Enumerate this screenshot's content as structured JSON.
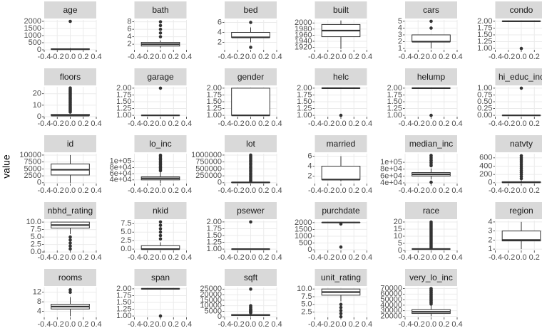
{
  "chart_data": {
    "type": "boxplot",
    "y_label": "value",
    "xlim": [
      -0.4,
      0.4
    ],
    "xticks": [
      -0.4,
      -0.2,
      {
        "value": 0,
        "label": "0.0"
      },
      0.2,
      0.4
    ],
    "panels": [
      {
        "title": "age",
        "ylim": [
          0,
          2100
        ],
        "yticks": [
          0,
          500,
          1000,
          1500,
          2000
        ],
        "whisker_low": 0,
        "q1": 30,
        "median": 45,
        "q3": 70,
        "whisker_high": 120,
        "outliers": [
          2000
        ]
      },
      {
        "title": "bath",
        "ylim": [
          0.5,
          8.5
        ],
        "yticks": [
          2,
          4,
          6,
          8
        ],
        "whisker_low": 1,
        "q1": 1.5,
        "median": 2,
        "q3": 2.5,
        "whisker_high": 3,
        "outliers": [
          4,
          5,
          6,
          7,
          8
        ]
      },
      {
        "title": "bed",
        "ylim": [
          0.5,
          6.5
        ],
        "yticks": [
          2,
          4,
          6
        ],
        "whisker_low": 2,
        "q1": 3,
        "median": 3,
        "q3": 4,
        "whisker_high": 5,
        "outliers": [
          1,
          6
        ]
      },
      {
        "title": "built",
        "ylim": [
          1912,
          2010
        ],
        "yticks": [
          1920,
          1940,
          1960,
          1980,
          2000
        ],
        "whisker_low": 1915,
        "q1": 1955,
        "median": 1975,
        "q3": 1995,
        "whisker_high": 2008,
        "outliers": []
      },
      {
        "title": "cars",
        "ylim": [
          0.8,
          5.2
        ],
        "yticks": [
          1,
          2,
          3,
          4,
          5
        ],
        "whisker_low": 1,
        "q1": 2,
        "median": 2,
        "q3": 3,
        "whisker_high": 3,
        "outliers": [
          4,
          5
        ]
      },
      {
        "title": "condo",
        "ylim": [
          0.95,
          2.05
        ],
        "yticks": [
          {
            "value": 1,
            "label": "1.00"
          },
          1.25,
          {
            "value": 1.5,
            "label": "1.50"
          },
          1.75,
          {
            "value": 2,
            "label": "2.00"
          }
        ],
        "whisker_low": 2,
        "q1": 2,
        "median": 2,
        "q3": 2,
        "whisker_high": 2,
        "outliers": [
          1
        ]
      },
      {
        "title": "floors",
        "ylim": [
          0,
          26
        ],
        "yticks": [
          0,
          10,
          20
        ],
        "whisker_low": 1,
        "q1": 1,
        "median": 1,
        "q3": 2,
        "whisker_high": 2,
        "outliers": [
          4,
          5,
          6,
          7,
          8,
          9,
          10,
          11,
          12,
          13,
          14,
          15,
          16,
          17,
          18,
          19,
          20,
          21,
          22,
          23,
          24,
          25
        ]
      },
      {
        "title": "garage",
        "ylim": [
          0.95,
          2.05
        ],
        "yticks": [
          {
            "value": 1,
            "label": "1.00"
          },
          1.25,
          {
            "value": 1.5,
            "label": "1.50"
          },
          1.75,
          {
            "value": 2,
            "label": "2.00"
          }
        ],
        "whisker_low": 1,
        "q1": 1,
        "median": 1,
        "q3": 1,
        "whisker_high": 1,
        "outliers": [
          2
        ]
      },
      {
        "title": "gender",
        "ylim": [
          0.95,
          2.05
        ],
        "yticks": [
          {
            "value": 1,
            "label": "1.00"
          },
          1.25,
          {
            "value": 1.5,
            "label": "1.50"
          },
          1.75,
          {
            "value": 2,
            "label": "2.00"
          }
        ],
        "whisker_low": 1,
        "q1": 1,
        "median": 1,
        "q3": 2,
        "whisker_high": 2,
        "outliers": []
      },
      {
        "title": "helc",
        "ylim": [
          0.95,
          2.05
        ],
        "yticks": [
          {
            "value": 1,
            "label": "1.00"
          },
          1.25,
          {
            "value": 1.5,
            "label": "1.50"
          },
          1.75,
          {
            "value": 2,
            "label": "2.00"
          }
        ],
        "whisker_low": 2,
        "q1": 2,
        "median": 2,
        "q3": 2,
        "whisker_high": 2,
        "outliers": [
          1
        ]
      },
      {
        "title": "helump",
        "ylim": [
          0.95,
          2.05
        ],
        "yticks": [
          {
            "value": 1,
            "label": "1.00"
          },
          1.25,
          {
            "value": 1.5,
            "label": "1.50"
          },
          1.75,
          {
            "value": 2,
            "label": "2.00"
          }
        ],
        "whisker_low": 2,
        "q1": 2,
        "median": 2,
        "q3": 2,
        "whisker_high": 2,
        "outliers": [
          1
        ]
      },
      {
        "title": "hi_educ_inc",
        "ylim": [
          -0.05,
          1.05
        ],
        "yticks": [
          {
            "value": 0,
            "label": "0.00"
          },
          0.25,
          {
            "value": 0.5,
            "label": "0.50"
          },
          0.75,
          {
            "value": 1,
            "label": "1.00"
          }
        ],
        "whisker_low": 0,
        "q1": 0,
        "median": 0,
        "q3": 0,
        "whisker_high": 0,
        "outliers": [
          1
        ]
      },
      {
        "title": "id",
        "ylim": [
          -300,
          10500
        ],
        "yticks": [
          0,
          2500,
          5000,
          7500,
          10000
        ],
        "whisker_low": 0,
        "q1": 2800,
        "median": 4700,
        "q3": 6800,
        "whisker_high": 10000,
        "outliers": []
      },
      {
        "title": "lo_inc",
        "ylim": [
          28000,
          125000
        ],
        "yticks": [
          {
            "value": 40000,
            "label": "4e+04"
          },
          {
            "value": 60000,
            "label": "6e+04"
          },
          {
            "value": 80000,
            "label": "8e+04"
          },
          {
            "value": 100000,
            "label": "1e+05"
          }
        ],
        "whisker_low": 30000,
        "q1": 40000,
        "median": 45000,
        "q3": 50000,
        "whisker_high": 65000,
        "outliers": [
          70000,
          75000,
          80000,
          85000,
          90000,
          95000,
          100000,
          105000,
          110000,
          115000,
          120000
        ]
      },
      {
        "title": "lot",
        "ylim": [
          -30000,
          1050000
        ],
        "yticks": [
          0,
          250000,
          500000,
          750000,
          1000000
        ],
        "whisker_low": 0,
        "q1": 8000,
        "median": 12000,
        "q3": 18000,
        "whisker_high": 40000,
        "outliers": [
          60000,
          100000,
          150000,
          200000,
          250000,
          300000,
          350000,
          400000,
          450000,
          500000,
          550000,
          600000,
          650000,
          700000,
          750000,
          800000,
          850000,
          900000,
          950000,
          1000000
        ]
      },
      {
        "title": "married",
        "ylim": [
          0.5,
          6.5
        ],
        "yticks": [
          2,
          4,
          6
        ],
        "whisker_low": 1,
        "q1": 1.3,
        "median": 1.3,
        "q3": 4,
        "whisker_high": 6,
        "outliers": []
      },
      {
        "title": "median_inc",
        "ylim": [
          38000,
          125000
        ],
        "yticks": [
          {
            "value": 40000,
            "label": "4e+04"
          },
          {
            "value": 60000,
            "label": "6e+04"
          },
          {
            "value": 80000,
            "label": "8e+04"
          },
          {
            "value": 100000,
            "label": "1e+05"
          }
        ],
        "whisker_low": 50000,
        "q1": 60000,
        "median": 65000,
        "q3": 70000,
        "whisker_high": 82000,
        "outliers": [
          42000,
          90000,
          95000,
          100000,
          105000,
          110000,
          115000,
          120000
        ]
      },
      {
        "title": "natvty",
        "ylim": [
          -20,
          700
        ],
        "yticks": [
          0,
          200,
          400,
          600
        ],
        "whisker_low": 0,
        "q1": 5,
        "median": 10,
        "q3": 25,
        "whisker_high": 60,
        "outliers": [
          100,
          150,
          200,
          250,
          300,
          350,
          400,
          450,
          500,
          550,
          600,
          650
        ]
      },
      {
        "title": "nbhd_rating",
        "ylim": [
          0.5,
          10.5
        ],
        "yticks": [
          {
            "value": 0,
            "label": "0.0"
          },
          2.5,
          {
            "value": 5,
            "label": "5.0"
          },
          7.5,
          {
            "value": 10,
            "label": "10.0"
          }
        ],
        "whisker_low": 6,
        "q1": 8,
        "median": 9,
        "q3": 10,
        "whisker_high": 10,
        "outliers": [
          1,
          2,
          3,
          4,
          5
        ]
      },
      {
        "title": "nkid",
        "ylim": [
          -0.4,
          8.4
        ],
        "yticks": [
          {
            "value": 0,
            "label": "0.0"
          },
          2.5,
          {
            "value": 5,
            "label": "5.0"
          },
          7.5
        ],
        "whisker_low": 0,
        "q1": 0,
        "median": 0,
        "q3": 1,
        "whisker_high": 2,
        "outliers": [
          3,
          4,
          5,
          6,
          7,
          8
        ]
      },
      {
        "title": "psewer",
        "ylim": [
          0.95,
          2.05
        ],
        "yticks": [
          {
            "value": 1,
            "label": "1.00"
          },
          1.25,
          {
            "value": 1.5,
            "label": "1.50"
          },
          1.75,
          {
            "value": 2,
            "label": "2.00"
          }
        ],
        "whisker_low": 1,
        "q1": 1,
        "median": 1,
        "q3": 1,
        "whisker_high": 1,
        "outliers": [
          2
        ]
      },
      {
        "title": "purchdate",
        "ylim": [
          -50,
          2150
        ],
        "yticks": [
          0,
          500,
          1000,
          1500,
          2000
        ],
        "whisker_low": 1995,
        "q1": 2005,
        "median": 2010,
        "q3": 2015,
        "whisker_high": 2020,
        "outliers": [
          1900,
          200
        ]
      },
      {
        "title": "race",
        "ylim": [
          0,
          21
        ],
        "yticks": [
          0,
          5,
          10,
          15,
          20
        ],
        "whisker_low": 1,
        "q1": 1,
        "median": 1,
        "q3": 1,
        "whisker_high": 1,
        "outliers": [
          2,
          3,
          4,
          5,
          6,
          7,
          8,
          9,
          10,
          11,
          12,
          13,
          14,
          15,
          16,
          17,
          18,
          19,
          20
        ]
      },
      {
        "title": "region",
        "ylim": [
          0.85,
          4.15
        ],
        "yticks": [
          1,
          2,
          3,
          4
        ],
        "whisker_low": 1,
        "q1": 1.9,
        "median": 2,
        "q3": 3,
        "whisker_high": 4,
        "outliers": []
      },
      {
        "title": "rooms",
        "ylim": [
          1.5,
          14
        ],
        "yticks": [
          4,
          8,
          12
        ],
        "whisker_low": 2,
        "q1": 5,
        "median": 6,
        "q3": 7,
        "whisker_high": 10,
        "outliers": [
          12,
          13
        ]
      },
      {
        "title": "span",
        "ylim": [
          0.95,
          2.05
        ],
        "yticks": [
          {
            "value": 1,
            "label": "1.00"
          },
          1.25,
          {
            "value": 1.5,
            "label": "1.50"
          },
          1.75,
          {
            "value": 2,
            "label": "2.00"
          }
        ],
        "whisker_low": 2,
        "q1": 2,
        "median": 2,
        "q3": 2,
        "whisker_high": 2,
        "outliers": [
          1
        ]
      },
      {
        "title": "sqft",
        "ylim": [
          -500,
          26500
        ],
        "yticks": [
          0,
          5000,
          10000,
          15000,
          20000,
          25000
        ],
        "whisker_low": 400,
        "q1": 1200,
        "median": 1600,
        "q3": 2000,
        "whisker_high": 2800,
        "outliers": [
          3500,
          4000,
          4500,
          5000,
          5500,
          6000,
          6500,
          7000,
          8000,
          9000,
          10000,
          25000
        ]
      },
      {
        "title": "unit_rating",
        "ylim": [
          0.8,
          10.5
        ],
        "yticks": [
          2.5,
          {
            "value": 5,
            "label": "5.0"
          },
          7.5,
          {
            "value": 10,
            "label": "10.0"
          }
        ],
        "whisker_low": 6,
        "q1": 8,
        "median": 9,
        "q3": 10,
        "whisker_high": 10,
        "outliers": [
          1,
          2,
          3,
          4,
          5
        ]
      },
      {
        "title": "very_lo_inc",
        "ylim": [
          18000,
          72000
        ],
        "yticks": [
          20000,
          30000,
          40000,
          50000,
          60000,
          70000
        ],
        "whisker_low": 20000,
        "q1": 25000,
        "median": 28000,
        "q3": 32000,
        "whisker_high": 40000,
        "outliers": [
          42000,
          44000,
          46000,
          48000,
          50000,
          52000,
          54000,
          56000,
          58000,
          60000,
          62000,
          64000,
          66000,
          68000,
          70000
        ]
      }
    ]
  }
}
